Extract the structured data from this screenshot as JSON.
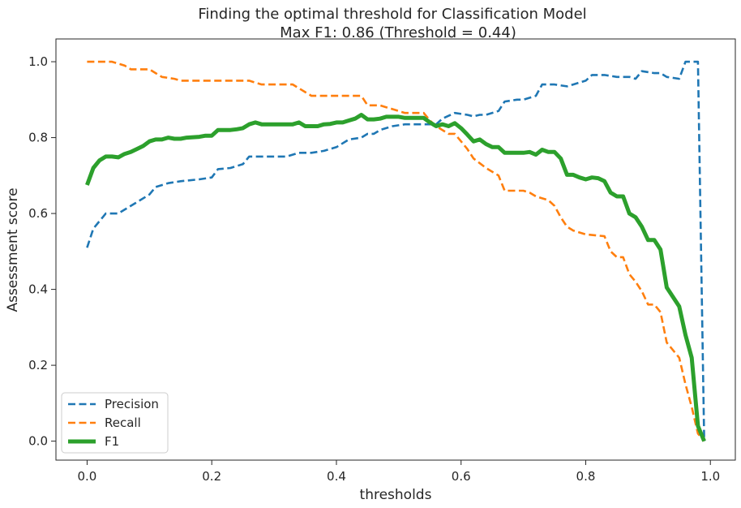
{
  "chart_data": {
    "type": "line",
    "title": "Finding the optimal threshold for Classification Model",
    "subtitle": "Max F1: 0.86 (Threshold = 0.44)",
    "xlabel": "thresholds",
    "ylabel": "Assessment score",
    "xlim": [
      -0.05,
      1.04
    ],
    "ylim": [
      -0.05,
      1.06
    ],
    "xticks": [
      "0.0",
      "0.2",
      "0.4",
      "0.6",
      "0.8",
      "1.0"
    ],
    "yticks": [
      "0.0",
      "0.2",
      "0.4",
      "0.6",
      "0.8",
      "1.0"
    ],
    "grid": false,
    "legend_position": "lower-left",
    "series": [
      {
        "name": "Precision",
        "color": "#1f77b4",
        "style": "dashed",
        "points": [
          [
            0.0,
            0.51
          ],
          [
            0.01,
            0.56
          ],
          [
            0.02,
            0.58
          ],
          [
            0.03,
            0.6
          ],
          [
            0.05,
            0.6
          ],
          [
            0.06,
            0.61
          ],
          [
            0.08,
            0.63
          ],
          [
            0.1,
            0.65
          ],
          [
            0.11,
            0.67
          ],
          [
            0.13,
            0.68
          ],
          [
            0.15,
            0.685
          ],
          [
            0.18,
            0.69
          ],
          [
            0.2,
            0.695
          ],
          [
            0.21,
            0.717
          ],
          [
            0.23,
            0.72
          ],
          [
            0.24,
            0.725
          ],
          [
            0.25,
            0.73
          ],
          [
            0.26,
            0.75
          ],
          [
            0.28,
            0.75
          ],
          [
            0.32,
            0.75
          ],
          [
            0.34,
            0.76
          ],
          [
            0.36,
            0.76
          ],
          [
            0.38,
            0.765
          ],
          [
            0.4,
            0.775
          ],
          [
            0.42,
            0.795
          ],
          [
            0.44,
            0.8
          ],
          [
            0.45,
            0.81
          ],
          [
            0.46,
            0.81
          ],
          [
            0.47,
            0.82
          ],
          [
            0.49,
            0.83
          ],
          [
            0.51,
            0.835
          ],
          [
            0.54,
            0.835
          ],
          [
            0.56,
            0.835
          ],
          [
            0.57,
            0.85
          ],
          [
            0.59,
            0.865
          ],
          [
            0.61,
            0.86
          ],
          [
            0.62,
            0.856
          ],
          [
            0.63,
            0.86
          ],
          [
            0.64,
            0.86
          ],
          [
            0.66,
            0.87
          ],
          [
            0.67,
            0.895
          ],
          [
            0.69,
            0.9
          ],
          [
            0.7,
            0.9
          ],
          [
            0.72,
            0.91
          ],
          [
            0.73,
            0.94
          ],
          [
            0.75,
            0.94
          ],
          [
            0.77,
            0.935
          ],
          [
            0.78,
            0.94
          ],
          [
            0.8,
            0.95
          ],
          [
            0.81,
            0.965
          ],
          [
            0.83,
            0.965
          ],
          [
            0.85,
            0.96
          ],
          [
            0.87,
            0.96
          ],
          [
            0.88,
            0.955
          ],
          [
            0.89,
            0.975
          ],
          [
            0.91,
            0.97
          ],
          [
            0.92,
            0.97
          ],
          [
            0.93,
            0.96
          ],
          [
            0.95,
            0.955
          ],
          [
            0.96,
            1.0
          ],
          [
            0.98,
            1.0
          ],
          [
            0.99,
            0.0
          ]
        ]
      },
      {
        "name": "Recall",
        "color": "#ff7f0e",
        "style": "dashed",
        "points": [
          [
            0.0,
            1.0
          ],
          [
            0.04,
            1.0
          ],
          [
            0.06,
            0.99
          ],
          [
            0.07,
            0.98
          ],
          [
            0.1,
            0.98
          ],
          [
            0.11,
            0.97
          ],
          [
            0.12,
            0.96
          ],
          [
            0.14,
            0.955
          ],
          [
            0.15,
            0.95
          ],
          [
            0.26,
            0.95
          ],
          [
            0.27,
            0.945
          ],
          [
            0.28,
            0.94
          ],
          [
            0.33,
            0.94
          ],
          [
            0.34,
            0.93
          ],
          [
            0.35,
            0.92
          ],
          [
            0.36,
            0.91
          ],
          [
            0.44,
            0.91
          ],
          [
            0.45,
            0.885
          ],
          [
            0.47,
            0.885
          ],
          [
            0.48,
            0.88
          ],
          [
            0.5,
            0.87
          ],
          [
            0.51,
            0.865
          ],
          [
            0.54,
            0.865
          ],
          [
            0.55,
            0.845
          ],
          [
            0.56,
            0.83
          ],
          [
            0.58,
            0.81
          ],
          [
            0.59,
            0.81
          ],
          [
            0.6,
            0.79
          ],
          [
            0.61,
            0.77
          ],
          [
            0.62,
            0.745
          ],
          [
            0.64,
            0.72
          ],
          [
            0.66,
            0.7
          ],
          [
            0.67,
            0.66
          ],
          [
            0.7,
            0.66
          ],
          [
            0.71,
            0.655
          ],
          [
            0.72,
            0.645
          ],
          [
            0.74,
            0.635
          ],
          [
            0.75,
            0.62
          ],
          [
            0.76,
            0.59
          ],
          [
            0.77,
            0.565
          ],
          [
            0.78,
            0.555
          ],
          [
            0.8,
            0.545
          ],
          [
            0.83,
            0.54
          ],
          [
            0.84,
            0.5
          ],
          [
            0.85,
            0.485
          ],
          [
            0.86,
            0.485
          ],
          [
            0.87,
            0.44
          ],
          [
            0.88,
            0.42
          ],
          [
            0.89,
            0.395
          ],
          [
            0.9,
            0.36
          ],
          [
            0.91,
            0.36
          ],
          [
            0.92,
            0.34
          ],
          [
            0.93,
            0.26
          ],
          [
            0.95,
            0.22
          ],
          [
            0.96,
            0.15
          ],
          [
            0.97,
            0.09
          ],
          [
            0.98,
            0.02
          ],
          [
            0.99,
            0.0
          ]
        ]
      },
      {
        "name": "F1",
        "color": "#2ca02c",
        "style": "solid",
        "points": [
          [
            0.0,
            0.675
          ],
          [
            0.01,
            0.72
          ],
          [
            0.02,
            0.74
          ],
          [
            0.03,
            0.75
          ],
          [
            0.04,
            0.75
          ],
          [
            0.05,
            0.748
          ],
          [
            0.06,
            0.757
          ],
          [
            0.07,
            0.762
          ],
          [
            0.08,
            0.77
          ],
          [
            0.09,
            0.778
          ],
          [
            0.1,
            0.79
          ],
          [
            0.11,
            0.795
          ],
          [
            0.12,
            0.795
          ],
          [
            0.13,
            0.8
          ],
          [
            0.14,
            0.797
          ],
          [
            0.15,
            0.797
          ],
          [
            0.16,
            0.8
          ],
          [
            0.18,
            0.802
          ],
          [
            0.19,
            0.805
          ],
          [
            0.2,
            0.805
          ],
          [
            0.21,
            0.82
          ],
          [
            0.23,
            0.82
          ],
          [
            0.24,
            0.822
          ],
          [
            0.25,
            0.825
          ],
          [
            0.26,
            0.835
          ],
          [
            0.27,
            0.84
          ],
          [
            0.28,
            0.835
          ],
          [
            0.33,
            0.835
          ],
          [
            0.34,
            0.84
          ],
          [
            0.35,
            0.83
          ],
          [
            0.37,
            0.83
          ],
          [
            0.38,
            0.835
          ],
          [
            0.39,
            0.836
          ],
          [
            0.4,
            0.84
          ],
          [
            0.41,
            0.84
          ],
          [
            0.42,
            0.845
          ],
          [
            0.43,
            0.85
          ],
          [
            0.44,
            0.86
          ],
          [
            0.45,
            0.848
          ],
          [
            0.46,
            0.848
          ],
          [
            0.47,
            0.85
          ],
          [
            0.48,
            0.855
          ],
          [
            0.5,
            0.855
          ],
          [
            0.51,
            0.852
          ],
          [
            0.54,
            0.852
          ],
          [
            0.55,
            0.84
          ],
          [
            0.56,
            0.83
          ],
          [
            0.57,
            0.835
          ],
          [
            0.58,
            0.83
          ],
          [
            0.59,
            0.838
          ],
          [
            0.6,
            0.825
          ],
          [
            0.61,
            0.808
          ],
          [
            0.62,
            0.79
          ],
          [
            0.63,
            0.795
          ],
          [
            0.64,
            0.783
          ],
          [
            0.65,
            0.775
          ],
          [
            0.66,
            0.775
          ],
          [
            0.67,
            0.76
          ],
          [
            0.7,
            0.76
          ],
          [
            0.71,
            0.762
          ],
          [
            0.72,
            0.755
          ],
          [
            0.73,
            0.768
          ],
          [
            0.74,
            0.762
          ],
          [
            0.75,
            0.762
          ],
          [
            0.76,
            0.745
          ],
          [
            0.77,
            0.702
          ],
          [
            0.78,
            0.702
          ],
          [
            0.79,
            0.695
          ],
          [
            0.8,
            0.69
          ],
          [
            0.81,
            0.695
          ],
          [
            0.82,
            0.693
          ],
          [
            0.83,
            0.685
          ],
          [
            0.84,
            0.655
          ],
          [
            0.85,
            0.645
          ],
          [
            0.86,
            0.645
          ],
          [
            0.87,
            0.6
          ],
          [
            0.88,
            0.59
          ],
          [
            0.89,
            0.565
          ],
          [
            0.9,
            0.53
          ],
          [
            0.91,
            0.53
          ],
          [
            0.92,
            0.505
          ],
          [
            0.93,
            0.405
          ],
          [
            0.95,
            0.355
          ],
          [
            0.96,
            0.28
          ],
          [
            0.97,
            0.22
          ],
          [
            0.98,
            0.04
          ],
          [
            0.99,
            0.0
          ]
        ]
      }
    ]
  }
}
